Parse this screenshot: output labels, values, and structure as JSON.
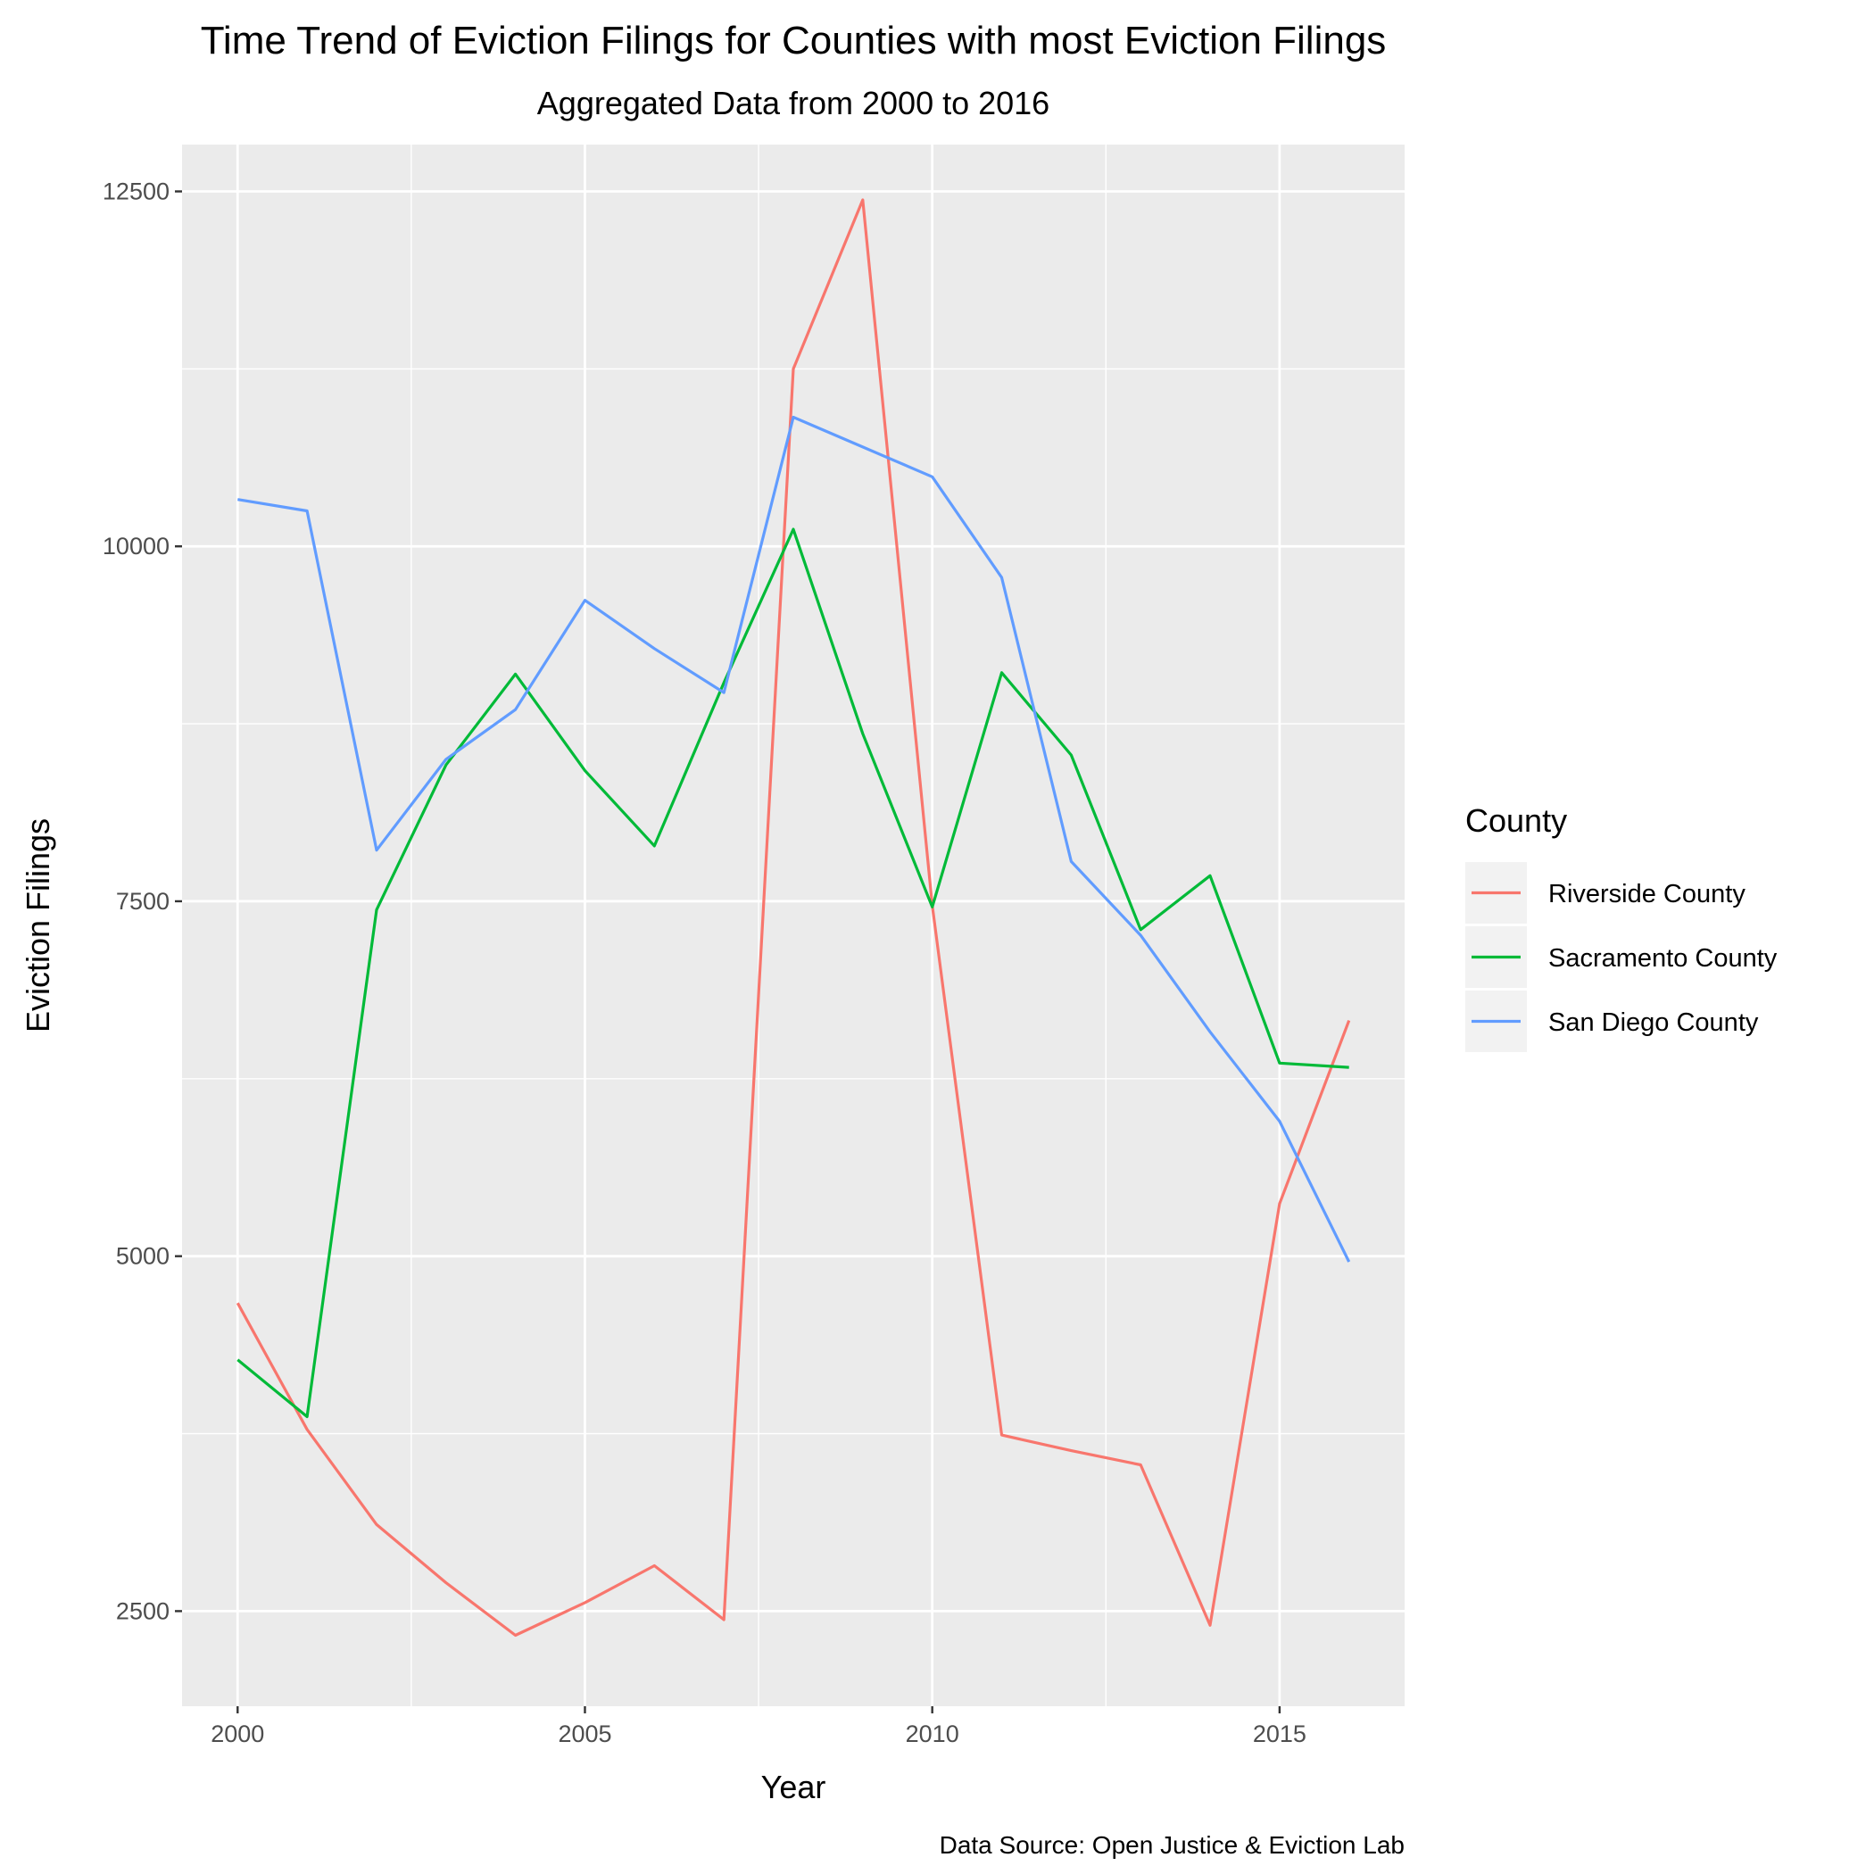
{
  "chart_data": {
    "type": "line",
    "title": "Time Trend of Eviction Filings for Counties with most Eviction Filings",
    "subtitle": "Aggregated Data from 2000 to 2016",
    "xlabel": "Year",
    "ylabel": "Eviction Filings",
    "caption": "Data Source: Open Justice & Eviction Lab",
    "xlim": [
      1999.2,
      2016.8
    ],
    "ylim": [
      1830,
      12830
    ],
    "x_ticks": [
      2000,
      2005,
      2010,
      2015
    ],
    "y_ticks": [
      2500,
      5000,
      7500,
      10000,
      12500
    ],
    "x_tick_labels": [
      "2000",
      "2005",
      "2010",
      "2015"
    ],
    "y_tick_labels": [
      "2500",
      "5000",
      "7500",
      "10000",
      "12500"
    ],
    "grid": true,
    "legend": {
      "title": "County",
      "position": "right"
    },
    "x": [
      2000,
      2001,
      2002,
      2003,
      2004,
      2005,
      2006,
      2007,
      2008,
      2009,
      2010,
      2011,
      2012,
      2013,
      2014,
      2015,
      2016
    ],
    "series": [
      {
        "name": "Riverside County",
        "color": "#F8766D",
        "values": [
          4670,
          3780,
          3110,
          2700,
          2330,
          2560,
          2820,
          2440,
          11250,
          12440,
          7470,
          3740,
          3630,
          3530,
          2400,
          5370,
          6660
        ]
      },
      {
        "name": "Sacramento County",
        "color": "#00BA38",
        "values": [
          4270,
          3870,
          7440,
          8460,
          9100,
          8420,
          7890,
          9040,
          10120,
          8680,
          7460,
          9110,
          8530,
          7300,
          7680,
          6360,
          6330
        ]
      },
      {
        "name": "San Diego County",
        "color": "#619CFF",
        "values": [
          10330,
          10250,
          7860,
          8500,
          8850,
          9620,
          9280,
          8970,
          10910,
          10700,
          10490,
          9780,
          7780,
          7260,
          6580,
          5950,
          4960
        ]
      }
    ]
  }
}
